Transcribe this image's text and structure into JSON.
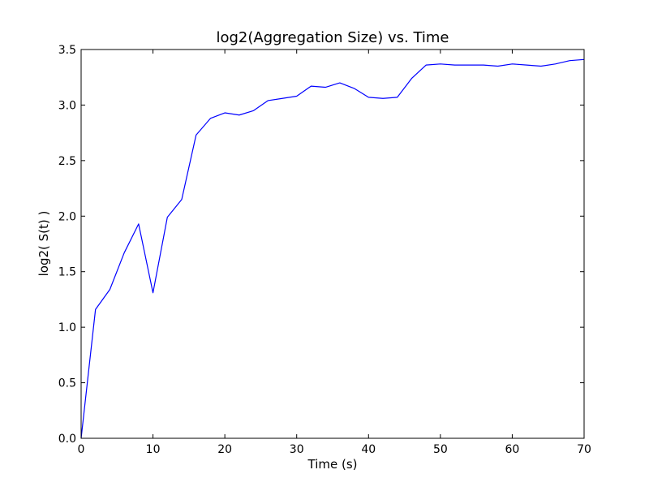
{
  "chart_data": {
    "type": "line",
    "title": "log2(Aggregation Size)  vs. Time",
    "xlabel": "Time (s)",
    "ylabel": "log2( S(t) )",
    "xlim": [
      0,
      70
    ],
    "ylim": [
      0,
      3.5
    ],
    "xticks": [
      0,
      10,
      20,
      30,
      40,
      50,
      60,
      70
    ],
    "yticks": [
      0.0,
      0.5,
      1.0,
      1.5,
      2.0,
      2.5,
      3.0,
      3.5
    ],
    "x_tick_labels": [
      "0",
      "10",
      "20",
      "30",
      "40",
      "50",
      "60",
      "70"
    ],
    "y_tick_labels": [
      "0.0",
      "0.5",
      "1.0",
      "1.5",
      "2.0",
      "2.5",
      "3.0",
      "3.5"
    ],
    "grid": false,
    "series": [
      {
        "color": "#0000ff",
        "x": [
          0,
          2,
          4,
          6,
          8,
          10,
          12,
          14,
          16,
          18,
          20,
          22,
          24,
          26,
          28,
          30,
          32,
          34,
          36,
          38,
          40,
          42,
          44,
          46,
          48,
          50,
          52,
          54,
          56,
          58,
          60,
          62,
          64,
          66,
          68,
          70
        ],
        "y": [
          0.0,
          1.16,
          1.34,
          1.67,
          1.93,
          1.31,
          1.99,
          2.15,
          2.73,
          2.88,
          2.93,
          2.91,
          2.95,
          3.04,
          3.06,
          3.08,
          3.17,
          3.16,
          3.2,
          3.15,
          3.07,
          3.06,
          3.07,
          3.24,
          3.36,
          3.37,
          3.36,
          3.36,
          3.36,
          3.35,
          3.37,
          3.36,
          3.35,
          3.37,
          3.4,
          3.41
        ]
      }
    ]
  }
}
